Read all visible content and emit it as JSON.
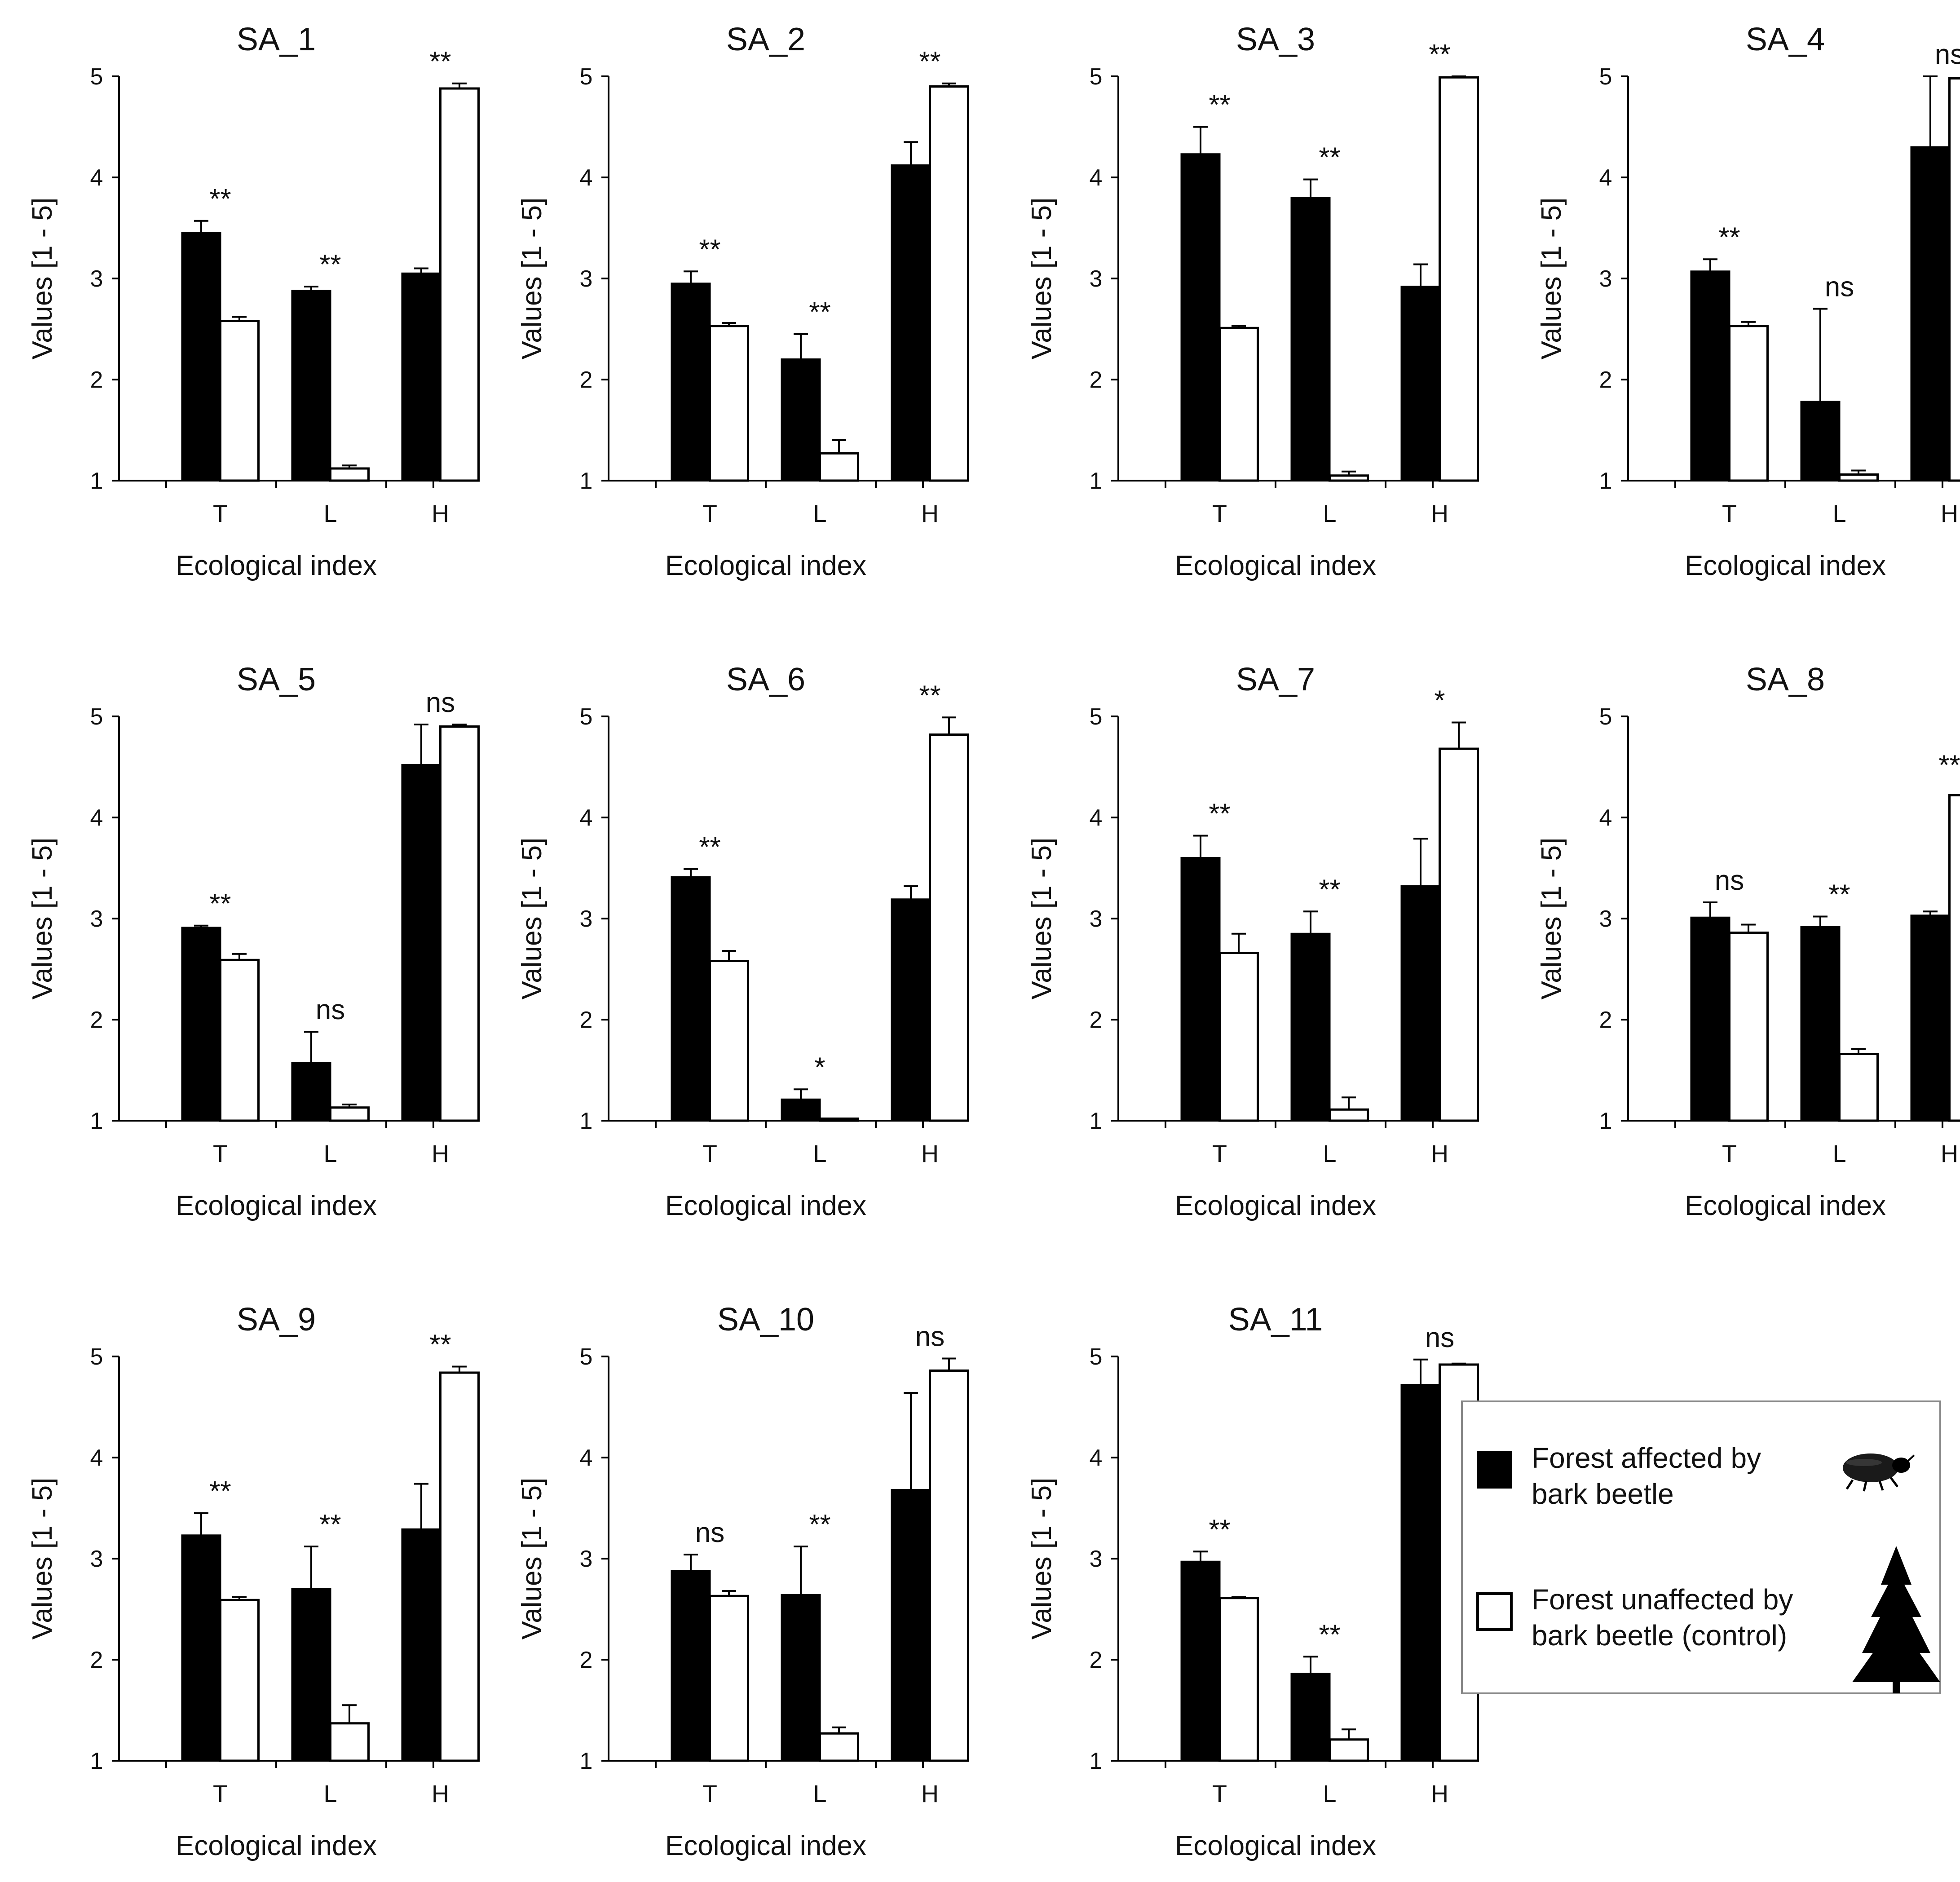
{
  "figure": {
    "ylabel": "Values [1 - 5]",
    "xlabel": "Ecological index",
    "categories": [
      "T",
      "L",
      "H"
    ],
    "yticks": [
      "1",
      "2",
      "3",
      "4",
      "5"
    ]
  },
  "colors": {
    "affected": "#000000",
    "control": "#ffffff",
    "stroke": "#000000",
    "legend_border": "#888888"
  },
  "legend": {
    "items": [
      {
        "label_line1": "Forest affected by",
        "label_line2": "bark beetle",
        "icon": "bark-beetle-icon"
      },
      {
        "label_line1": "Forest unaffected by",
        "label_line2": "bark beetle (control)",
        "icon": "spruce-tree-icon"
      }
    ]
  },
  "chart_data": [
    {
      "type": "bar",
      "title": "SA_1",
      "categories": [
        "T",
        "L",
        "H"
      ],
      "xlabel": "Ecological index",
      "ylabel": "Values [1 - 5]",
      "ylim": [
        1,
        5
      ],
      "series": [
        {
          "name": "Forest affected by bark beetle",
          "values": [
            3.45,
            2.88,
            3.05
          ],
          "errors": [
            0.12,
            0.04,
            0.05
          ]
        },
        {
          "name": "Forest unaffected by bark beetle (control)",
          "values": [
            2.58,
            1.12,
            4.88
          ],
          "errors": [
            0.04,
            0.03,
            0.05
          ]
        }
      ],
      "annotations": [
        "**",
        "**",
        "**"
      ]
    },
    {
      "type": "bar",
      "title": "SA_2",
      "categories": [
        "T",
        "L",
        "H"
      ],
      "xlabel": "Ecological index",
      "ylabel": "Values [1 - 5]",
      "ylim": [
        1,
        5
      ],
      "series": [
        {
          "name": "Forest affected by bark beetle",
          "values": [
            2.95,
            2.2,
            4.12
          ],
          "errors": [
            0.12,
            0.25,
            0.23
          ]
        },
        {
          "name": "Forest unaffected by bark beetle (control)",
          "values": [
            2.53,
            1.27,
            4.9
          ],
          "errors": [
            0.03,
            0.13,
            0.03
          ]
        }
      ],
      "annotations": [
        "**",
        "**",
        "**"
      ]
    },
    {
      "type": "bar",
      "title": "SA_3",
      "categories": [
        "T",
        "L",
        "H"
      ],
      "xlabel": "Ecological index",
      "ylabel": "Values [1 - 5]",
      "ylim": [
        1,
        5
      ],
      "series": [
        {
          "name": "Forest affected by bark beetle",
          "values": [
            4.23,
            3.8,
            2.92
          ],
          "errors": [
            0.27,
            0.18,
            0.22
          ]
        },
        {
          "name": "Forest unaffected by bark beetle (control)",
          "values": [
            2.51,
            1.05,
            4.99
          ],
          "errors": [
            0.02,
            0.04,
            0.01
          ]
        }
      ],
      "annotations": [
        "**",
        "**",
        "**"
      ]
    },
    {
      "type": "bar",
      "title": "SA_4",
      "categories": [
        "T",
        "L",
        "H"
      ],
      "xlabel": "Ecological index",
      "ylabel": "Values [1 - 5]",
      "ylim": [
        1,
        5
      ],
      "series": [
        {
          "name": "Forest affected by bark beetle",
          "values": [
            3.07,
            1.78,
            4.3
          ],
          "errors": [
            0.12,
            0.92,
            0.7
          ]
        },
        {
          "name": "Forest unaffected by bark beetle (control)",
          "values": [
            2.53,
            1.06,
            4.98
          ],
          "errors": [
            0.04,
            0.04,
            0.0
          ]
        }
      ],
      "annotations": [
        "**",
        "ns",
        "ns"
      ]
    },
    {
      "type": "bar",
      "title": "SA_5",
      "categories": [
        "T",
        "L",
        "H"
      ],
      "xlabel": "Ecological index",
      "ylabel": "Values [1 - 5]",
      "ylim": [
        1,
        5
      ],
      "series": [
        {
          "name": "Forest affected by bark beetle",
          "values": [
            2.91,
            1.57,
            4.52
          ],
          "errors": [
            0.02,
            0.31,
            0.4
          ]
        },
        {
          "name": "Forest unaffected by bark beetle (control)",
          "values": [
            2.59,
            1.13,
            4.9
          ],
          "errors": [
            0.06,
            0.03,
            0.02
          ]
        }
      ],
      "annotations": [
        "**",
        "ns",
        "ns"
      ]
    },
    {
      "type": "bar",
      "title": "SA_6",
      "categories": [
        "T",
        "L",
        "H"
      ],
      "xlabel": "Ecological index",
      "ylabel": "Values [1 - 5]",
      "ylim": [
        1,
        5
      ],
      "series": [
        {
          "name": "Forest affected by bark beetle",
          "values": [
            3.41,
            1.21,
            3.19
          ],
          "errors": [
            0.08,
            0.1,
            0.13
          ]
        },
        {
          "name": "Forest unaffected by bark beetle (control)",
          "values": [
            2.58,
            1.02,
            4.82
          ],
          "errors": [
            0.1,
            0.0,
            0.17
          ]
        }
      ],
      "annotations": [
        "**",
        "*",
        "**"
      ]
    },
    {
      "type": "bar",
      "title": "SA_7",
      "categories": [
        "T",
        "L",
        "H"
      ],
      "xlabel": "Ecological index",
      "ylabel": "Values [1 - 5]",
      "ylim": [
        1,
        5
      ],
      "series": [
        {
          "name": "Forest affected by bark beetle",
          "values": [
            3.6,
            2.85,
            3.32
          ],
          "errors": [
            0.22,
            0.22,
            0.47
          ]
        },
        {
          "name": "Forest unaffected by bark beetle (control)",
          "values": [
            2.66,
            1.11,
            4.68
          ],
          "errors": [
            0.19,
            0.12,
            0.26
          ]
        }
      ],
      "annotations": [
        "**",
        "**",
        "*"
      ]
    },
    {
      "type": "bar",
      "title": "SA_8",
      "categories": [
        "T",
        "L",
        "H"
      ],
      "xlabel": "Ecological index",
      "ylabel": "Values [1 - 5]",
      "ylim": [
        1,
        5
      ],
      "series": [
        {
          "name": "Forest affected by bark beetle",
          "values": [
            3.01,
            2.92,
            3.03
          ],
          "errors": [
            0.15,
            0.1,
            0.04
          ]
        },
        {
          "name": "Forest unaffected by bark beetle (control)",
          "values": [
            2.86,
            1.66,
            4.22
          ],
          "errors": [
            0.08,
            0.05,
            0.08
          ]
        }
      ],
      "annotations": [
        "ns",
        "**",
        "**"
      ]
    },
    {
      "type": "bar",
      "title": "SA_9",
      "categories": [
        "T",
        "L",
        "H"
      ],
      "xlabel": "Ecological index",
      "ylabel": "Values [1 - 5]",
      "ylim": [
        1,
        5
      ],
      "series": [
        {
          "name": "Forest affected by bark beetle",
          "values": [
            3.23,
            2.7,
            3.29
          ],
          "errors": [
            0.22,
            0.42,
            0.45
          ]
        },
        {
          "name": "Forest unaffected by bark beetle (control)",
          "values": [
            2.59,
            1.37,
            4.84
          ],
          "errors": [
            0.03,
            0.18,
            0.06
          ]
        }
      ],
      "annotations": [
        "**",
        "**",
        "**"
      ]
    },
    {
      "type": "bar",
      "title": "SA_10",
      "categories": [
        "T",
        "L",
        "H"
      ],
      "xlabel": "Ecological index",
      "ylabel": "Values [1 - 5]",
      "ylim": [
        1,
        5
      ],
      "series": [
        {
          "name": "Forest affected by bark beetle",
          "values": [
            2.88,
            2.64,
            3.68
          ],
          "errors": [
            0.16,
            0.48,
            0.96
          ]
        },
        {
          "name": "Forest unaffected by bark beetle (control)",
          "values": [
            2.63,
            1.27,
            4.86
          ],
          "errors": [
            0.05,
            0.06,
            0.12
          ]
        }
      ],
      "annotations": [
        "ns",
        "**",
        "ns"
      ]
    },
    {
      "type": "bar",
      "title": "SA_11",
      "categories": [
        "T",
        "L",
        "H"
      ],
      "xlabel": "Ecological index",
      "ylabel": "Values [1 - 5]",
      "ylim": [
        1,
        5
      ],
      "series": [
        {
          "name": "Forest affected by bark beetle",
          "values": [
            2.97,
            1.86,
            4.72
          ],
          "errors": [
            0.1,
            0.17,
            0.25
          ]
        },
        {
          "name": "Forest unaffected by bark beetle (control)",
          "values": [
            2.61,
            1.21,
            4.92
          ],
          "errors": [
            0.01,
            0.1,
            0.01
          ]
        }
      ],
      "annotations": [
        "**",
        "**",
        "ns"
      ]
    }
  ]
}
